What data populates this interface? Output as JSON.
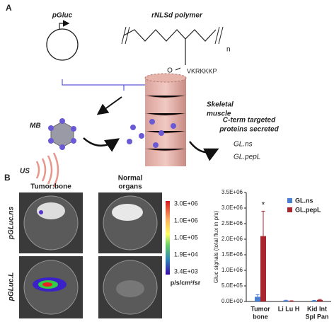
{
  "panel_a": {
    "label": "A",
    "plasmid": "pGluc",
    "polymer": "rNLSd polymer",
    "repeat": "n",
    "oxygen": "O",
    "peptide": "VKRKKKP",
    "microbubble": "MB",
    "ultrasound": "US",
    "muscle": [
      "Skeletal",
      "muscle"
    ],
    "result": [
      "C-term targeted",
      "proteins secreted"
    ],
    "products": [
      "GL.ns",
      "GL.pepL"
    ]
  },
  "panel_b": {
    "label": "B",
    "columns": [
      [
        "Tumor:bone"
      ],
      [
        "Normal",
        "organs"
      ]
    ],
    "rows": [
      "pGLuc.ns",
      "pGLuc.L"
    ],
    "colorbar_labels": [
      "3.0E+06",
      "1.0E+06",
      "1.0E+05",
      "1.9E+04",
      "3.4E+03"
    ],
    "colorbar_unit": "p/s/cm²/sr"
  },
  "chart_data": {
    "type": "bar",
    "y_label": "Gluc signals (total flux in p/s)",
    "categories": [
      [
        "Tumor",
        "bone"
      ],
      [
        "Li Lu H"
      ],
      [
        "Kid Int",
        "Spl Pan"
      ]
    ],
    "series": [
      {
        "name": "GL.ns",
        "color": "#4a7fd4",
        "values": [
          150000,
          30000,
          25000
        ],
        "errors": [
          70000,
          10000,
          10000
        ]
      },
      {
        "name": "GL.pepL",
        "color": "#a8262d",
        "values": [
          2100000,
          15000,
          50000
        ],
        "errors": [
          800000,
          8000,
          15000
        ]
      }
    ],
    "ylim": [
      0,
      3500000
    ],
    "yticks": [
      {
        "value": 0,
        "label": "0.0E+00"
      },
      {
        "value": 500000,
        "label": "5.0E+05"
      },
      {
        "value": 1000000,
        "label": "1.0E+06"
      },
      {
        "value": 1500000,
        "label": "1.5E+06"
      },
      {
        "value": 2000000,
        "label": "2.0E+06"
      },
      {
        "value": 2500000,
        "label": "2.5E+06"
      },
      {
        "value": 3000000,
        "label": "3.0E+06"
      },
      {
        "value": 3500000,
        "label": "3.5E+06"
      }
    ],
    "annotation": "*",
    "legend": "upper right"
  }
}
